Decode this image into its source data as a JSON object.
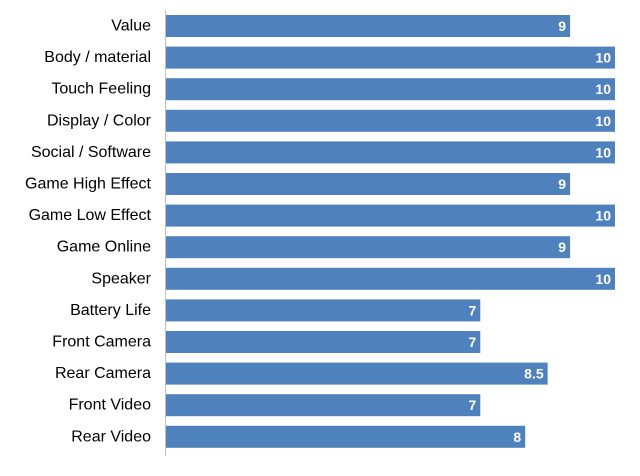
{
  "chart_data": {
    "type": "bar",
    "orientation": "horizontal",
    "categories": [
      "Value",
      "Body / material",
      "Touch Feeling",
      "Display / Color",
      "Social / Software",
      "Game High Effect",
      "Game Low Effect",
      "Game Online",
      "Speaker",
      "Battery Life",
      "Front Camera",
      "Rear Camera",
      "Front Video",
      "Rear Video"
    ],
    "values": [
      9,
      10,
      10,
      10,
      10,
      9,
      10,
      9,
      10,
      7,
      7,
      8.5,
      7,
      8
    ],
    "data_labels": [
      "9",
      "10",
      "10",
      "10",
      "10",
      "9",
      "10",
      "9",
      "10",
      "7",
      "7",
      "8.5",
      "7",
      "8"
    ],
    "xlim": [
      0,
      10
    ],
    "bar_color": "#4f81bd",
    "label_color": "#ffffff",
    "grid": false,
    "legend": "none",
    "title": "",
    "xlabel": "",
    "ylabel": ""
  }
}
